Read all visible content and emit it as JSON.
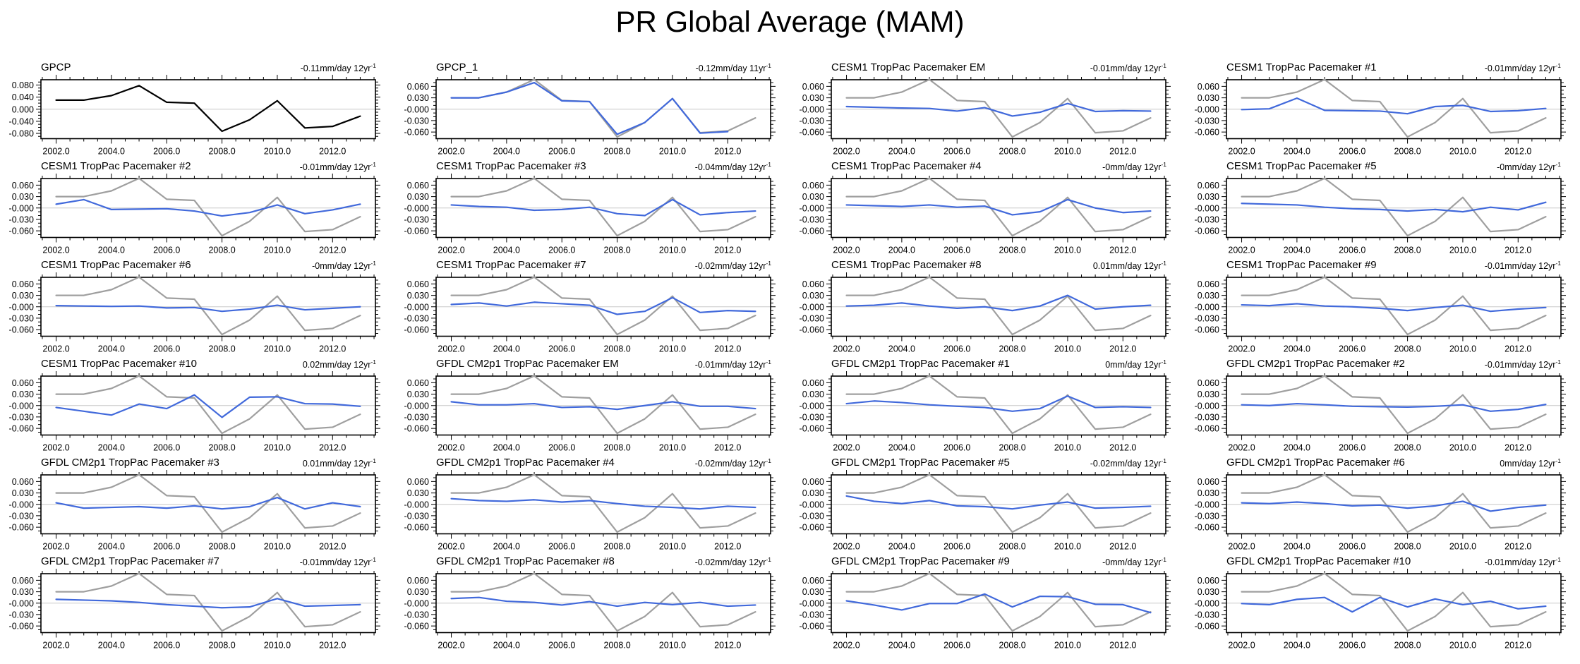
{
  "page_title": "PR Global Average (MAM)",
  "colors": {
    "model_line_blue": "#4169db",
    "obs_line_gray": "#9f9f9f",
    "obs_line_black": "#000000",
    "zero_line": "#c8c8c8",
    "frame": "#000000"
  },
  "axes": {
    "x_domain": [
      2001.45,
      2013.55
    ],
    "x_major_years": [
      2002,
      2004,
      2006,
      2008,
      2010,
      2012
    ],
    "x_tick_labels": [
      "2002.0",
      "2004.0",
      "2006.0",
      "2008.0",
      "2010.0",
      "2012.0"
    ],
    "x_minor_step": 0.5,
    "y_axes": {
      "gpcp": {
        "lim": [
          -0.0975,
          0.0975
        ],
        "majors": [
          0.08,
          0.04,
          0,
          -0.04,
          -0.08
        ],
        "minor_step": 0.01,
        "labels": [
          "0.080",
          "0.040",
          "0.000",
          "-0.040",
          "-0.080"
        ]
      },
      "std": {
        "lim": [
          -0.0775,
          0.0775
        ],
        "majors": [
          0.06,
          0.03,
          0,
          -0.03,
          -0.06
        ],
        "minor_step": 0.01,
        "labels": [
          "0.060",
          "0.030",
          "-0.000",
          "-0.030",
          "-0.060"
        ]
      }
    }
  },
  "obs_series": {
    "name": "GPCP observations",
    "start_year": 2002,
    "values": [
      0.03,
      0.03,
      0.045,
      0.078,
      0.023,
      0.02,
      -0.073,
      -0.035,
      0.028,
      -0.062,
      -0.057,
      -0.023
    ]
  },
  "chart_data": [
    {
      "type": "line",
      "title": "GPCP",
      "trend": "-0.11mm/day 12yr",
      "trend_sup": "-1",
      "line_color": "black",
      "show_obs": false,
      "y_axis": "gpcp",
      "start_year": 2002,
      "values": [
        0.03,
        0.03,
        0.045,
        0.078,
        0.023,
        0.02,
        -0.073,
        -0.035,
        0.028,
        -0.062,
        -0.057,
        -0.023
      ]
    },
    {
      "type": "line",
      "title": "GPCP_1",
      "trend": "-0.12mm/day 11yr",
      "trend_sup": "-1",
      "line_color": "blue",
      "show_obs": true,
      "y_axis": "std",
      "start_year": 2002,
      "values": [
        0.03,
        0.03,
        0.045,
        0.07,
        0.022,
        0.02,
        -0.066,
        -0.035,
        0.028,
        -0.063,
        -0.059
      ]
    },
    {
      "type": "line",
      "title": "CESM1 TropPac Pacemaker EM",
      "trend": "-0.01mm/day 12yr",
      "trend_sup": "-1",
      "line_color": "blue",
      "show_obs": true,
      "y_axis": "std",
      "start_year": 2002,
      "values": [
        0.007,
        0.005,
        0.003,
        0.002,
        -0.005,
        0.004,
        -0.018,
        -0.008,
        0.015,
        -0.006,
        -0.004,
        -0.005
      ]
    },
    {
      "type": "line",
      "title": "CESM1 TropPac Pacemaker #1",
      "trend": "-0.01mm/day 12yr",
      "trend_sup": "-1",
      "line_color": "blue",
      "show_obs": true,
      "y_axis": "std",
      "start_year": 2002,
      "values": [
        -0.001,
        0.001,
        0.029,
        -0.003,
        -0.004,
        -0.005,
        -0.012,
        0.007,
        0.01,
        -0.006,
        -0.004,
        0.002
      ]
    },
    {
      "type": "line",
      "title": "CESM1 TropPac Pacemaker #2",
      "trend": "-0.01mm/day 12yr",
      "trend_sup": "-1",
      "line_color": "blue",
      "show_obs": true,
      "y_axis": "std",
      "start_year": 2002,
      "values": [
        0.01,
        0.022,
        -0.004,
        -0.003,
        -0.002,
        -0.008,
        -0.021,
        -0.012,
        0.008,
        -0.015,
        -0.005,
        0.01
      ]
    },
    {
      "type": "line",
      "title": "CESM1 TropPac Pacemaker #3",
      "trend": "-0.04mm/day 12yr",
      "trend_sup": "-1",
      "line_color": "blue",
      "show_obs": true,
      "y_axis": "std",
      "start_year": 2002,
      "values": [
        0.008,
        0.004,
        0.002,
        -0.006,
        -0.004,
        0.002,
        -0.015,
        -0.02,
        0.022,
        -0.018,
        -0.012,
        -0.008
      ]
    },
    {
      "type": "line",
      "title": "CESM1 TropPac Pacemaker #4",
      "trend": "-0mm/day 12yr",
      "trend_sup": "-1",
      "line_color": "blue",
      "show_obs": true,
      "y_axis": "std",
      "start_year": 2002,
      "values": [
        0.008,
        0.006,
        0.004,
        0.008,
        0.002,
        0.005,
        -0.018,
        -0.01,
        0.022,
        0.0,
        -0.012,
        -0.008
      ]
    },
    {
      "type": "line",
      "title": "CESM1 TropPac Pacemaker #5",
      "trend": "-0mm/day 12yr",
      "trend_sup": "-1",
      "line_color": "blue",
      "show_obs": true,
      "y_axis": "std",
      "start_year": 2002,
      "values": [
        0.012,
        0.01,
        0.008,
        0.002,
        -0.002,
        -0.004,
        -0.008,
        -0.004,
        -0.01,
        0.002,
        -0.005,
        0.015
      ]
    },
    {
      "type": "line",
      "title": "CESM1 TropPac Pacemaker #6",
      "trend": "-0mm/day 12yr",
      "trend_sup": "-1",
      "line_color": "blue",
      "show_obs": true,
      "y_axis": "std",
      "start_year": 2002,
      "values": [
        0.003,
        0.002,
        0.001,
        0.002,
        -0.003,
        -0.002,
        -0.012,
        -0.006,
        0.004,
        -0.008,
        -0.004,
        0.0
      ]
    },
    {
      "type": "line",
      "title": "CESM1 TropPac Pacemaker #7",
      "trend": "-0.02mm/day 12yr",
      "trend_sup": "-1",
      "line_color": "blue",
      "show_obs": true,
      "y_axis": "std",
      "start_year": 2002,
      "values": [
        0.006,
        0.01,
        0.002,
        0.012,
        0.008,
        0.004,
        -0.02,
        -0.012,
        0.024,
        -0.015,
        -0.01,
        -0.012
      ]
    },
    {
      "type": "line",
      "title": "CESM1 TropPac Pacemaker #8",
      "trend": "0.01mm/day 12yr",
      "trend_sup": "-1",
      "line_color": "blue",
      "show_obs": true,
      "y_axis": "std",
      "start_year": 2002,
      "values": [
        0.002,
        0.004,
        0.01,
        0.002,
        -0.004,
        0.0,
        -0.01,
        0.002,
        0.03,
        -0.006,
        0.0,
        0.004
      ]
    },
    {
      "type": "line",
      "title": "CESM1 TropPac Pacemaker #9",
      "trend": "-0.01mm/day 12yr",
      "trend_sup": "-1",
      "line_color": "blue",
      "show_obs": true,
      "y_axis": "std",
      "start_year": 2002,
      "values": [
        0.005,
        0.003,
        0.008,
        0.002,
        0.0,
        -0.004,
        -0.01,
        -0.002,
        0.004,
        -0.012,
        -0.006,
        -0.002
      ]
    },
    {
      "type": "line",
      "title": "CESM1 TropPac Pacemaker #10",
      "trend": "0.02mm/day 12yr",
      "trend_sup": "-1",
      "line_color": "blue",
      "show_obs": true,
      "y_axis": "std",
      "start_year": 2002,
      "values": [
        -0.005,
        -0.015,
        -0.025,
        0.004,
        -0.008,
        0.028,
        -0.031,
        0.022,
        0.023,
        0.005,
        0.004,
        -0.002
      ]
    },
    {
      "type": "line",
      "title": "GFDL CM2p1 TropPac Pacemaker EM",
      "trend": "-0.01mm/day 12yr",
      "trend_sup": "-1",
      "line_color": "blue",
      "show_obs": true,
      "y_axis": "std",
      "start_year": 2002,
      "values": [
        0.01,
        0.002,
        0.002,
        0.005,
        -0.005,
        -0.003,
        -0.01,
        0.0,
        0.01,
        -0.002,
        -0.002,
        -0.008
      ]
    },
    {
      "type": "line",
      "title": "GFDL CM2p1 TropPac Pacemaker #1",
      "trend": "0mm/day 12yr",
      "trend_sup": "-1",
      "line_color": "blue",
      "show_obs": true,
      "y_axis": "std",
      "start_year": 2002,
      "values": [
        0.005,
        0.012,
        0.008,
        0.002,
        -0.002,
        -0.005,
        -0.015,
        -0.008,
        0.025,
        -0.005,
        -0.003,
        -0.005
      ]
    },
    {
      "type": "line",
      "title": "GFDL CM2p1 TropPac Pacemaker #2",
      "trend": "-0.01mm/day 12yr",
      "trend_sup": "-1",
      "line_color": "blue",
      "show_obs": true,
      "y_axis": "std",
      "start_year": 2002,
      "values": [
        0.002,
        0.0,
        0.005,
        0.002,
        -0.002,
        -0.003,
        -0.004,
        -0.002,
        0.002,
        -0.015,
        -0.01,
        0.003
      ]
    },
    {
      "type": "line",
      "title": "GFDL CM2p1 TropPac Pacemaker #3",
      "trend": "0.01mm/day 12yr",
      "trend_sup": "-1",
      "line_color": "blue",
      "show_obs": true,
      "y_axis": "std",
      "start_year": 2002,
      "values": [
        0.004,
        -0.01,
        -0.008,
        -0.006,
        -0.01,
        -0.004,
        -0.012,
        -0.006,
        0.018,
        -0.012,
        0.004,
        -0.006
      ]
    },
    {
      "type": "line",
      "title": "GFDL CM2p1 TropPac Pacemaker #4",
      "trend": "-0.02mm/day 12yr",
      "trend_sup": "-1",
      "line_color": "blue",
      "show_obs": true,
      "y_axis": "std",
      "start_year": 2002,
      "values": [
        0.015,
        0.01,
        0.008,
        0.012,
        0.006,
        0.01,
        0.002,
        -0.005,
        -0.008,
        -0.012,
        -0.005,
        -0.008
      ]
    },
    {
      "type": "line",
      "title": "GFDL CM2p1 TropPac Pacemaker #5",
      "trend": "-0.02mm/day 12yr",
      "trend_sup": "-1",
      "line_color": "blue",
      "show_obs": true,
      "y_axis": "std",
      "start_year": 2002,
      "values": [
        0.022,
        0.008,
        0.002,
        0.01,
        -0.004,
        -0.006,
        -0.012,
        -0.002,
        0.006,
        -0.01,
        -0.008,
        -0.005
      ]
    },
    {
      "type": "line",
      "title": "GFDL CM2p1 TropPac Pacemaker #6",
      "trend": "0mm/day 12yr",
      "trend_sup": "-1",
      "line_color": "blue",
      "show_obs": true,
      "y_axis": "std",
      "start_year": 2002,
      "values": [
        0.004,
        0.002,
        0.006,
        0.002,
        -0.004,
        -0.002,
        -0.01,
        -0.004,
        0.008,
        -0.018,
        -0.008,
        -0.002
      ]
    },
    {
      "type": "line",
      "title": "GFDL CM2p1 TropPac Pacemaker #7",
      "trend": "-0.01mm/day 12yr",
      "trend_sup": "-1",
      "line_color": "blue",
      "show_obs": true,
      "y_axis": "std",
      "start_year": 2002,
      "values": [
        0.01,
        0.008,
        0.006,
        0.002,
        -0.004,
        -0.008,
        -0.012,
        -0.01,
        0.012,
        -0.008,
        -0.006,
        -0.004
      ]
    },
    {
      "type": "line",
      "title": "GFDL CM2p1 TropPac Pacemaker #8",
      "trend": "-0.02mm/day 12yr",
      "trend_sup": "-1",
      "line_color": "blue",
      "show_obs": true,
      "y_axis": "std",
      "start_year": 2002,
      "values": [
        0.012,
        0.015,
        0.005,
        0.002,
        -0.005,
        0.004,
        -0.008,
        0.002,
        -0.004,
        0.002,
        -0.008,
        -0.005
      ]
    },
    {
      "type": "line",
      "title": "GFDL CM2p1 TropPac Pacemaker #9",
      "trend": "-0mm/day 12yr",
      "trend_sup": "-1",
      "line_color": "blue",
      "show_obs": true,
      "y_axis": "std",
      "start_year": 2002,
      "values": [
        0.006,
        -0.005,
        -0.018,
        -0.001,
        -0.001,
        0.024,
        -0.01,
        0.018,
        0.017,
        -0.003,
        -0.004,
        -0.025
      ]
    },
    {
      "type": "line",
      "title": "GFDL CM2p1 TropPac Pacemaker #10",
      "trend": "-0.01mm/day 12yr",
      "trend_sup": "-1",
      "line_color": "blue",
      "show_obs": true,
      "y_axis": "std",
      "start_year": 2002,
      "values": [
        -0.001,
        -0.004,
        0.01,
        0.015,
        -0.023,
        0.015,
        -0.01,
        0.011,
        -0.004,
        0.005,
        -0.015,
        -0.008
      ]
    }
  ]
}
